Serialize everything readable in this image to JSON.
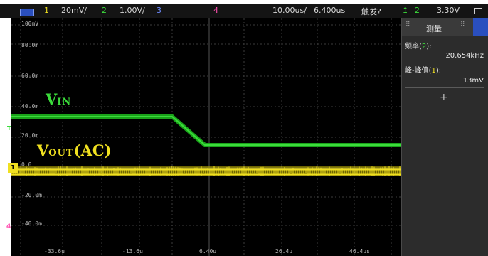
{
  "statusbar": {
    "ch1": "1",
    "ch1_scale": "20mV/",
    "ch2": "2",
    "ch2_scale": "1.00V/",
    "ch3": "3",
    "ch4": "4",
    "timebase": "10.00us/",
    "delay": "6.400us",
    "trigger_label": "触发?",
    "trigger_ch": "2",
    "trigger_level": "3.30V"
  },
  "y_labels": [
    "100mV",
    "80.0m",
    "60.0m",
    "40.0m",
    "20.0m",
    "0.0",
    "-20.0m",
    "-40.0m"
  ],
  "x_labels": [
    "-33.6u",
    "-13.6u",
    "6.40u",
    "26.4u",
    "46.4us"
  ],
  "traces": {
    "vin": {
      "main": "V",
      "sub": "IN"
    },
    "vout": {
      "main": "V",
      "sub": "OUT",
      "suffix": "(AC)"
    }
  },
  "markers": {
    "ch1": "1",
    "ch2": "T",
    "ch4": "4"
  },
  "panel": {
    "title": "测量",
    "m1_label": "频率(",
    "m1_ch": "2",
    "m1_close": "):",
    "m1_value": "20.654kHz",
    "m2_label": "峰-峰值(",
    "m2_ch": "1",
    "m2_close": "):",
    "m2_value": "13mV",
    "add": "+"
  },
  "colors": {
    "ch1": "#f0e020",
    "ch2": "#3bdc3b",
    "ch3": "#6f8cff",
    "ch4": "#ff4fb0",
    "trigger": "#f5a000"
  }
}
